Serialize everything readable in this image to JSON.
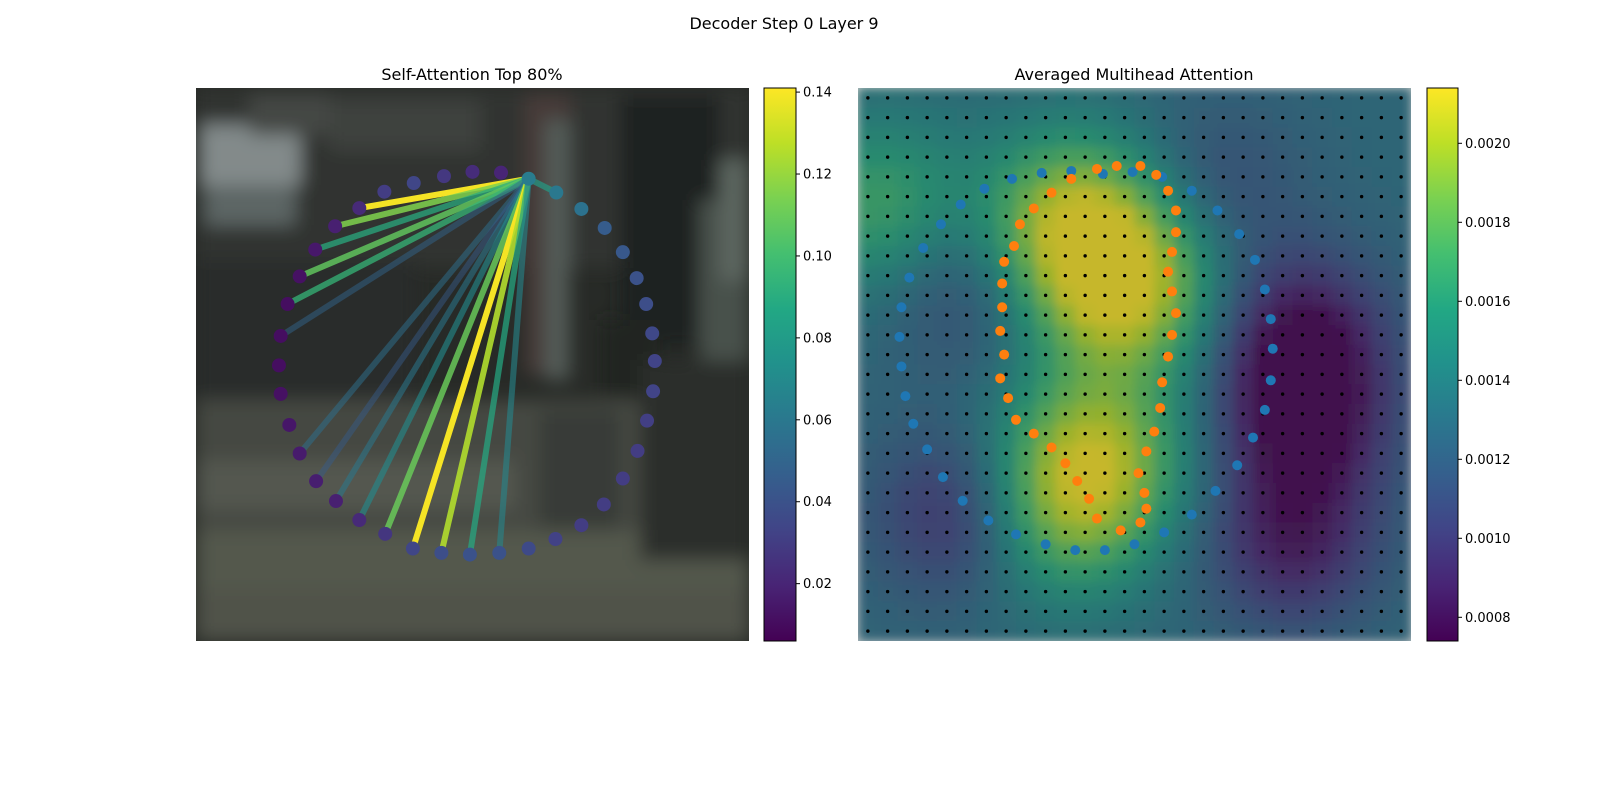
{
  "figure": {
    "title": "Decoder Step 0 Layer 9"
  },
  "chart_data": [
    {
      "type": "scatter",
      "title": "Self-Attention Top 80%",
      "xlim": [
        0,
        64
      ],
      "ylim": [
        64,
        0
      ],
      "axes_visible": false,
      "background": "blurred street-scene photograph (dark, low contrast)",
      "colormap": "viridis",
      "query_point": [
        38.5,
        10.5
      ],
      "points": [
        [
          38.5,
          10.5
        ],
        [
          41.7,
          12.1
        ],
        [
          44.6,
          14
        ],
        [
          47.3,
          16.2
        ],
        [
          49.4,
          19
        ],
        [
          51,
          22
        ],
        [
          52.1,
          25
        ],
        [
          52.8,
          28.4
        ],
        [
          53.1,
          31.6
        ],
        [
          52.9,
          35.1
        ],
        [
          52.2,
          38.5
        ],
        [
          51.1,
          42
        ],
        [
          49.4,
          45.2
        ],
        [
          47.2,
          48.2
        ],
        [
          44.6,
          50.6
        ],
        [
          41.6,
          52.2
        ],
        [
          38.5,
          53.3
        ],
        [
          35.1,
          53.8
        ],
        [
          31.7,
          54
        ],
        [
          28.4,
          53.8
        ],
        [
          25.1,
          53.3
        ],
        [
          21.9,
          51.6
        ],
        [
          18.9,
          50
        ],
        [
          16.2,
          47.8
        ],
        [
          13.9,
          45.5
        ],
        [
          12,
          42.3
        ],
        [
          10.8,
          39
        ],
        [
          9.8,
          35.4
        ],
        [
          9.6,
          32.1
        ],
        [
          9.8,
          28.7
        ],
        [
          10.6,
          25
        ],
        [
          12,
          21.8
        ],
        [
          13.8,
          18.7
        ],
        [
          16.1,
          16
        ],
        [
          18.9,
          13.9
        ],
        [
          21.8,
          12
        ],
        [
          25.2,
          11
        ],
        [
          28.7,
          10.2
        ],
        [
          32,
          9.7
        ],
        [
          35.3,
          9.8
        ]
      ],
      "point_values": [
        0.062,
        0.06,
        0.057,
        0.045,
        0.043,
        0.04,
        0.038,
        0.035,
        0.033,
        0.033,
        0.031,
        0.03,
        0.03,
        0.03,
        0.03,
        0.032,
        0.036,
        0.04,
        0.04,
        0.038,
        0.034,
        0.027,
        0.022,
        0.018,
        0.017,
        0.016,
        0.014,
        0.012,
        0.011,
        0.011,
        0.011,
        0.012,
        0.015,
        0.018,
        0.022,
        0.03,
        0.034,
        0.028,
        0.023,
        0.02
      ],
      "lines": [
        {
          "to": 1,
          "value": 0.082
        },
        {
          "to": 34,
          "value": 0.14
        },
        {
          "to": 33,
          "value": 0.115
        },
        {
          "to": 32,
          "value": 0.09
        },
        {
          "to": 31,
          "value": 0.108
        },
        {
          "to": 30,
          "value": 0.095
        },
        {
          "to": 29,
          "value": 0.05
        },
        {
          "to": 25,
          "value": 0.055
        },
        {
          "to": 24,
          "value": 0.045
        },
        {
          "to": 23,
          "value": 0.06
        },
        {
          "to": 22,
          "value": 0.07
        },
        {
          "to": 21,
          "value": 0.11
        },
        {
          "to": 20,
          "value": 0.14
        },
        {
          "to": 19,
          "value": 0.125
        },
        {
          "to": 18,
          "value": 0.088
        },
        {
          "to": 17,
          "value": 0.068
        }
      ],
      "colorbar": {
        "min": 0.006,
        "max": 0.141,
        "ticks": [
          "0.02",
          "0.04",
          "0.06",
          "0.08",
          "0.10",
          "0.12",
          "0.14"
        ]
      }
    },
    {
      "type": "heatmap",
      "title": "Averaged Multihead Attention",
      "axes_visible": false,
      "grid": [
        28,
        28
      ],
      "colormap": "viridis",
      "colorbar": {
        "min": 0.00074,
        "max": 0.00214,
        "ticks": [
          "0.0008",
          "0.0010",
          "0.0012",
          "0.0014",
          "0.0016",
          "0.0018",
          "0.0020"
        ]
      },
      "hot_spots": [
        {
          "x": 10.8,
          "y": 6.8,
          "value": 0.002
        },
        {
          "x": 13.6,
          "y": 10.2,
          "value": 0.00205
        },
        {
          "x": 12.1,
          "y": 18.6,
          "value": 0.0019
        },
        {
          "x": 10.2,
          "y": 21.6,
          "value": 0.00175
        },
        {
          "x": 1.0,
          "y": 6.0,
          "value": 0.0017
        }
      ],
      "cold_spots": [
        {
          "x": 22.4,
          "y": 12.6,
          "value": 0.00078
        },
        {
          "x": 22.6,
          "y": 17.0,
          "value": 0.00076
        },
        {
          "x": 5.2,
          "y": 21.6,
          "value": 0.0009
        },
        {
          "x": 22.0,
          "y": 23.0,
          "value": 0.00085
        },
        {
          "x": 5.5,
          "y": 10.0,
          "value": 0.00105
        },
        {
          "x": 18.0,
          "y": 5.0,
          "value": 0.0011
        }
      ],
      "series": [
        {
          "name": "",
          "color": "#1f77b4",
          "points": [
            [
              12.4,
              4.35
            ],
            [
              13.9,
              4.25
            ],
            [
              15.4,
              4.5
            ],
            [
              16.9,
              5.2
            ],
            [
              18.2,
              6.2
            ],
            [
              19.3,
              7.4
            ],
            [
              20.1,
              8.7
            ],
            [
              20.6,
              10.2
            ],
            [
              20.9,
              11.7
            ],
            [
              21,
              13.2
            ],
            [
              20.9,
              14.8
            ],
            [
              20.6,
              16.3
            ],
            [
              20,
              17.7
            ],
            [
              19.2,
              19.1
            ],
            [
              18.1,
              20.4
            ],
            [
              16.9,
              21.6
            ],
            [
              15.5,
              22.5
            ],
            [
              14,
              23.1
            ],
            [
              12.5,
              23.4
            ],
            [
              11,
              23.4
            ],
            [
              9.5,
              23.1
            ],
            [
              8,
              22.6
            ],
            [
              6.6,
              21.9
            ],
            [
              5.3,
              20.9
            ],
            [
              4.3,
              19.7
            ],
            [
              3.5,
              18.3
            ],
            [
              2.8,
              17
            ],
            [
              2.4,
              15.6
            ],
            [
              2.2,
              14.1
            ],
            [
              2.1,
              12.6
            ],
            [
              2.2,
              11.1
            ],
            [
              2.6,
              9.6
            ],
            [
              3.3,
              8.1
            ],
            [
              4.2,
              6.9
            ],
            [
              5.2,
              5.9
            ],
            [
              6.4,
              5.1
            ],
            [
              7.8,
              4.6
            ],
            [
              9.3,
              4.3
            ],
            [
              10.8,
              4.2
            ]
          ]
        },
        {
          "name": "",
          "color": "#ff7f0e",
          "points": [
            [
              14.3,
              3.95
            ],
            [
              15.1,
              4.4
            ],
            [
              15.7,
              5.2
            ],
            [
              16.1,
              6.2
            ],
            [
              16.1,
              7.3
            ],
            [
              15.9,
              8.3
            ],
            [
              15.7,
              9.3
            ],
            [
              15.9,
              10.3
            ],
            [
              16.1,
              11.4
            ],
            [
              15.9,
              12.5
            ],
            [
              15.7,
              13.6
            ],
            [
              15.4,
              14.9
            ],
            [
              15.3,
              16.2
            ],
            [
              15,
              17.4
            ],
            [
              14.6,
              18.4
            ],
            [
              14.2,
              19.5
            ],
            [
              14.5,
              20.5
            ],
            [
              14.6,
              21.3
            ],
            [
              14.3,
              22.0
            ],
            [
              13.3,
              22.4
            ],
            [
              12.1,
              21.8
            ],
            [
              11.7,
              20.8
            ],
            [
              11.1,
              19.9
            ],
            [
              10.5,
              19.0
            ],
            [
              9.8,
              18.2
            ],
            [
              8.9,
              17.5
            ],
            [
              8.0,
              16.8
            ],
            [
              7.6,
              15.7
            ],
            [
              7.2,
              14.7
            ],
            [
              7.4,
              13.5
            ],
            [
              7.2,
              12.3
            ],
            [
              7.3,
              11.1
            ],
            [
              7.3,
              9.9
            ],
            [
              7.4,
              8.8
            ],
            [
              7.9,
              8
            ],
            [
              8.2,
              6.9
            ],
            [
              8.9,
              6.1
            ],
            [
              9.8,
              5.3
            ],
            [
              10.8,
              4.6
            ],
            [
              12.1,
              4.1
            ],
            [
              13.1,
              3.95
            ]
          ]
        }
      ]
    }
  ]
}
